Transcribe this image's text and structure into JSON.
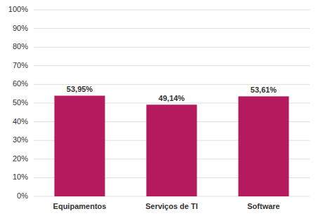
{
  "chart_data": {
    "type": "bar",
    "categories": [
      "Equipamentos",
      "Serviços de TI",
      "Software"
    ],
    "values": [
      53.95,
      49.14,
      53.61
    ],
    "value_labels": [
      "53,95%",
      "49,14%",
      "53,61%"
    ],
    "color": "#b5195e",
    "ylim": [
      0,
      100
    ],
    "yticks": [
      {
        "value": 0,
        "label": "0%"
      },
      {
        "value": 10,
        "label": "10%"
      },
      {
        "value": 20,
        "label": "20%"
      },
      {
        "value": 30,
        "label": "30%"
      },
      {
        "value": 40,
        "label": "40%"
      },
      {
        "value": 50,
        "label": "50%"
      },
      {
        "value": 60,
        "label": "60%"
      },
      {
        "value": 70,
        "label": "70%"
      },
      {
        "value": 80,
        "label": "80%"
      },
      {
        "value": 90,
        "label": "90%"
      },
      {
        "value": 100,
        "label": "100%"
      }
    ],
    "grid": true,
    "data_labels": true
  }
}
